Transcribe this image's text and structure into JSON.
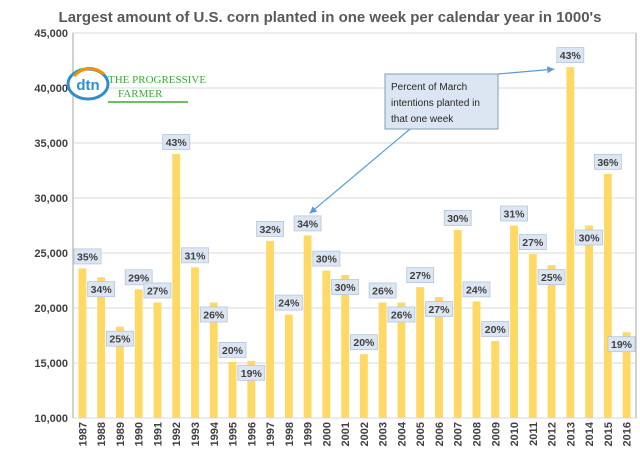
{
  "chart_data": {
    "type": "bar",
    "title": "Largest amount of U.S. corn planted in one week per calendar year in 1000's",
    "categories": [
      "1987",
      "1988",
      "1989",
      "1990",
      "1991",
      "1992",
      "1993",
      "1994",
      "1995",
      "1996",
      "1997",
      "1998",
      "1999",
      "2000",
      "2001",
      "2002",
      "2003",
      "2004",
      "2005",
      "2006",
      "2007",
      "2008",
      "2009",
      "2010",
      "2011",
      "2012",
      "2013",
      "2014",
      "2015",
      "2016"
    ],
    "values": [
      23600,
      22800,
      18300,
      21700,
      20500,
      34000,
      23700,
      20500,
      15100,
      15200,
      26100,
      19400,
      26600,
      23400,
      23000,
      15800,
      20500,
      20500,
      21900,
      21000,
      27100,
      20600,
      17000,
      27500,
      24900,
      23900,
      41900,
      27500,
      32200,
      17800
    ],
    "data_labels": [
      "35%",
      "34%",
      "25%",
      "29%",
      "27%",
      "43%",
      "31%",
      "26%",
      "20%",
      "19%",
      "32%",
      "24%",
      "34%",
      "30%",
      "30%",
      "20%",
      "26%",
      "26%",
      "27%",
      "27%",
      "30%",
      "24%",
      "20%",
      "31%",
      "27%",
      "25%",
      "43%",
      "30%",
      "36%",
      "19%"
    ],
    "label_placement": [
      "above",
      "below",
      "below",
      "above",
      "above",
      "above",
      "above",
      "below",
      "above",
      "below",
      "above",
      "above",
      "above",
      "above",
      "below",
      "above",
      "above",
      "below",
      "above",
      "below",
      "above",
      "above",
      "above",
      "above",
      "above",
      "below",
      "above",
      "below",
      "above",
      "below"
    ],
    "ylim": [
      10000,
      45000
    ],
    "yticks": [
      "10,000",
      "15,000",
      "20,000",
      "25,000",
      "30,000",
      "35,000",
      "40,000",
      "45,000"
    ],
    "grid": true,
    "bar_color": "#FFD966",
    "annotation": {
      "lines": [
        "Percent of March",
        "intentions planted in",
        "that one week"
      ],
      "arrow_targets": [
        "1999",
        "2013"
      ]
    }
  },
  "logo": {
    "mark": "dtn",
    "line1": "THE PROGRESSIVE",
    "line2": "FARMER",
    "colors": {
      "blue": "#2E8FCE",
      "green": "#3AAA35",
      "orange": "#F39200"
    }
  }
}
